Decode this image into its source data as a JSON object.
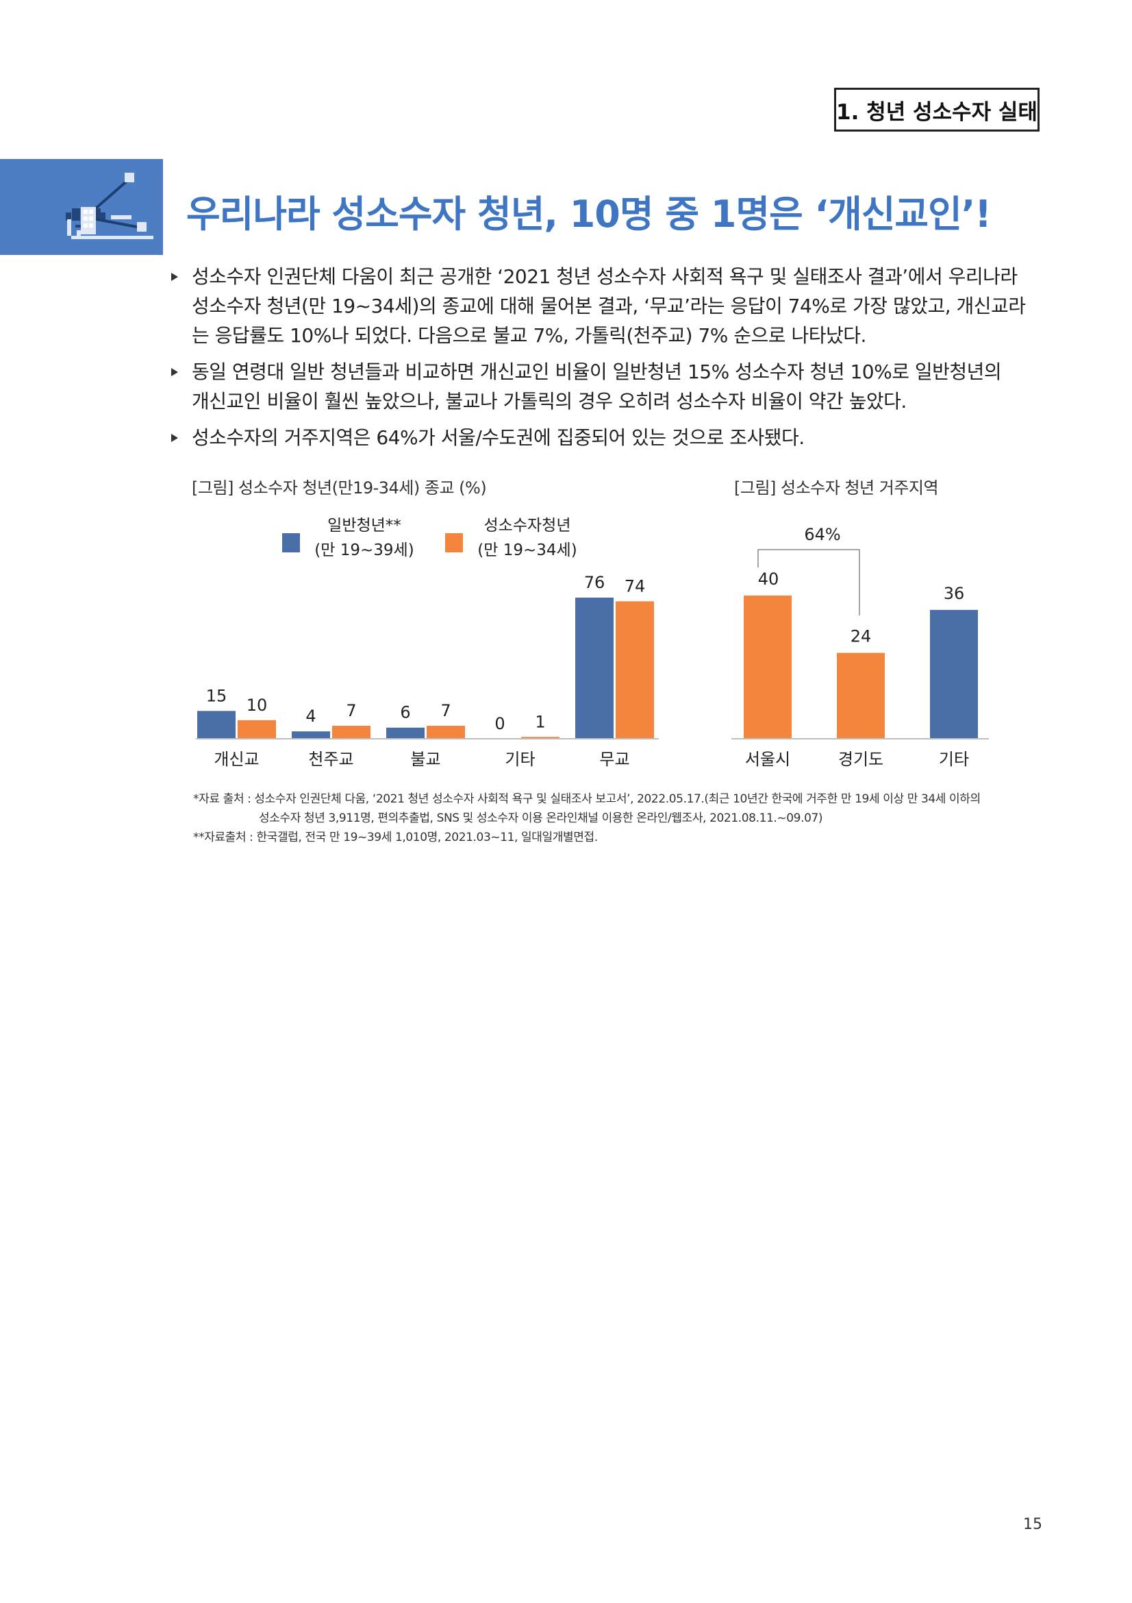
{
  "header": {
    "section_label": "1. 청년 성소수자 실태"
  },
  "banner": {
    "icon": "network-building-icon",
    "color": "#4d7dc2"
  },
  "title": "우리나라 성소수자 청년, 10명 중 1명은 ‘개신교인’!",
  "bullets": [
    [
      "성소수자 인권단체 다움이 최근 공개한 ‘2021 청년 성소수자 사회적 욕구 및 실태조사 결과’에서 우리나라",
      "성소수자 청년(만 19~34세)의 종교에 대해 물어본 결과, ‘무교’라는 응답이 74%로 가장 많았고, 개신교라",
      "는 응답률도 10%나 되었다. 다음으로 불교 7%, 가톨릭(천주교) 7% 순으로 나타났다."
    ],
    [
      "동일 연령대 일반 청년들과 비교하면 개신교인 비율이 일반청년 15% 성소수자 청년 10%로 일반청년의",
      "개신교인 비율이 훨씬 높았으나, 불교나 가톨릭의 경우 오히려 성소수자 비율이 약간 높았다."
    ],
    [
      "성소수자의 거주지역은 64%가 서울/수도권에 집중되어 있는 것으로 조사됐다."
    ]
  ],
  "colors": {
    "blue": "#4a6fa8",
    "orange": "#f3853d",
    "title": "#3f76c4"
  },
  "chart_data": [
    {
      "type": "bar",
      "title": "[그림] 성소수자 청년(만19-34세) 종교 (%)",
      "categories": [
        "개신교",
        "천주교",
        "불교",
        "기타",
        "무교"
      ],
      "series": [
        {
          "name": "일반청년**",
          "name_sub": "(만 19~39세)",
          "color": "#4a6fa8",
          "values": [
            15,
            4,
            6,
            0,
            76
          ]
        },
        {
          "name": "성소수자청년",
          "name_sub": "(만 19~34세)",
          "color": "#f3853d",
          "values": [
            10,
            7,
            7,
            1,
            74
          ]
        }
      ],
      "ylim": [
        0,
        80
      ],
      "legend": "top",
      "grid": false
    },
    {
      "type": "bar",
      "title": "[그림] 성소수자 청년 거주지역",
      "categories": [
        "서울시",
        "경기도",
        "기타"
      ],
      "values": [
        40,
        24,
        36
      ],
      "colors": [
        "#f3853d",
        "#f3853d",
        "#4a6fa8"
      ],
      "annotation": {
        "label": "64%",
        "spans": [
          "서울시",
          "경기도"
        ]
      },
      "ylim": [
        0,
        42
      ],
      "grid": false
    }
  ],
  "sources": [
    "*자료 출처 : 성소수자 인권단체 다움, ‘2021 청년 성소수자 사회적 욕구 및 실태조사 보고서’, 2022.05.17.(최근 10년간 한국에 거주한 만 19세 이상 만 34세 이하의",
    "성소수자 청년 3,911명, 편의추출법, SNS 및 성소수자 이용 온라인채널 이용한 온라인/웹조사, 2021.08.11.~09.07)",
    "**자료출처 : 한국갤럽, 전국 만 19~39세 1,010명, 2021.03~11, 일대일개별면접."
  ],
  "page_number": "15"
}
